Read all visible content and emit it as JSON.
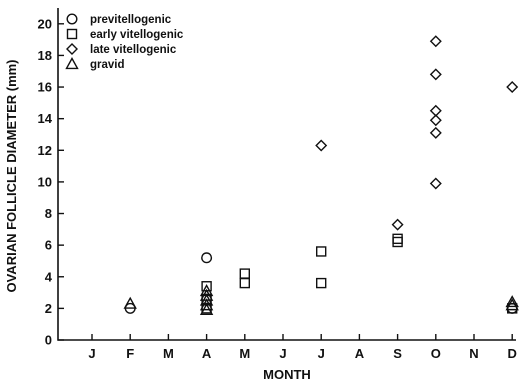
{
  "chart_data": {
    "type": "scatter",
    "xlabel": "MONTH",
    "ylabel": "OVARIAN FOLLICLE DIAMETER (mm)",
    "categories": [
      "J",
      "F",
      "M",
      "A",
      "M",
      "J",
      "J",
      "A",
      "S",
      "O",
      "N",
      "D"
    ],
    "yticks": [
      0,
      2,
      4,
      6,
      8,
      10,
      12,
      14,
      16,
      18,
      20
    ],
    "ylim": [
      0,
      21
    ],
    "grid": false,
    "legend_position": "top-left",
    "series": [
      {
        "name": "previtellogenic",
        "marker": "circle",
        "points": [
          {
            "x": "F",
            "y": 2.0
          },
          {
            "x": "A",
            "y": 5.2
          },
          {
            "x": "D",
            "y": 2.0
          }
        ]
      },
      {
        "name": "early vitellogenic",
        "marker": "square",
        "points": [
          {
            "x": "A",
            "y": 3.4
          },
          {
            "x": "A",
            "y": 2.6
          },
          {
            "x": "A",
            "y": 2.0
          },
          {
            "x": "M",
            "y": 4.2,
            "month_index": 4
          },
          {
            "x": "M",
            "y": 3.6,
            "month_index": 4
          },
          {
            "x": "J",
            "y": 5.6,
            "month_index": 6
          },
          {
            "x": "J",
            "y": 3.6,
            "month_index": 6
          },
          {
            "x": "S",
            "y": 6.4
          },
          {
            "x": "S",
            "y": 6.2
          },
          {
            "x": "D",
            "y": 2.0
          }
        ]
      },
      {
        "name": "late vitellogenic",
        "marker": "diamond",
        "points": [
          {
            "x": "J",
            "y": 12.3,
            "month_index": 6
          },
          {
            "x": "S",
            "y": 7.3
          },
          {
            "x": "O",
            "y": 18.9
          },
          {
            "x": "O",
            "y": 16.8
          },
          {
            "x": "O",
            "y": 14.5
          },
          {
            "x": "O",
            "y": 13.9
          },
          {
            "x": "O",
            "y": 13.1
          },
          {
            "x": "O",
            "y": 9.9
          },
          {
            "x": "D",
            "y": 16.0
          }
        ]
      },
      {
        "name": "gravid",
        "marker": "triangle",
        "points": [
          {
            "x": "F",
            "y": 2.3
          },
          {
            "x": "A",
            "y": 3.1
          },
          {
            "x": "A",
            "y": 2.8
          },
          {
            "x": "A",
            "y": 2.5
          },
          {
            "x": "A",
            "y": 2.2
          },
          {
            "x": "A",
            "y": 1.9
          },
          {
            "x": "D",
            "y": 2.4
          },
          {
            "x": "D",
            "y": 2.2
          }
        ]
      }
    ]
  }
}
